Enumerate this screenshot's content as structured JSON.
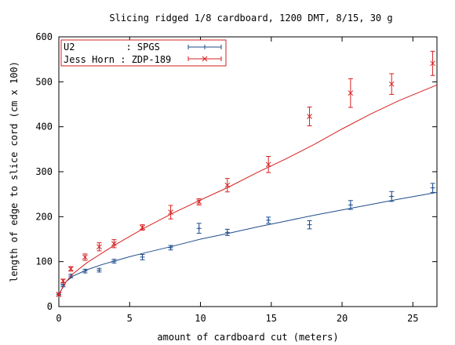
{
  "chart_data": {
    "type": "scatter",
    "title": "Slicing ridged 1/8 cardboard, 1200 DMT, 8/15, 30 g",
    "xlabel": "amount of cardboard cut (meters)",
    "ylabel": "length of edge to slice cord (cm x 100)",
    "xlim": [
      0,
      26.7
    ],
    "ylim": [
      0,
      600
    ],
    "xticks": [
      0,
      5,
      10,
      15,
      20,
      25
    ],
    "yticks": [
      0,
      100,
      200,
      300,
      400,
      500,
      600
    ],
    "grid": false,
    "legend_position": "top-left",
    "series": [
      {
        "name": "U2         : SPGS",
        "color": "#1f4e8c",
        "marker": "plus",
        "points": [
          {
            "x": 0,
            "y": 27,
            "err": 3
          },
          {
            "x": 0.3,
            "y": 47,
            "err": 3
          },
          {
            "x": 0.85,
            "y": 68,
            "err": 4
          },
          {
            "x": 1.85,
            "y": 79,
            "err": 4
          },
          {
            "x": 2.85,
            "y": 81,
            "err": 4
          },
          {
            "x": 3.9,
            "y": 101,
            "err": 4
          },
          {
            "x": 5.9,
            "y": 110,
            "err": 6
          },
          {
            "x": 7.9,
            "y": 131,
            "err": 5
          },
          {
            "x": 9.9,
            "y": 174,
            "err": 11
          },
          {
            "x": 11.9,
            "y": 165,
            "err": 7
          },
          {
            "x": 14.8,
            "y": 192,
            "err": 7
          },
          {
            "x": 17.7,
            "y": 182,
            "err": 9
          },
          {
            "x": 20.6,
            "y": 226,
            "err": 10
          },
          {
            "x": 23.5,
            "y": 245,
            "err": 11
          },
          {
            "x": 26.4,
            "y": 264,
            "err": 10
          }
        ],
        "fit": [
          [
            0,
            27
          ],
          [
            0.5,
            55
          ],
          [
            1,
            68
          ],
          [
            2,
            82
          ],
          [
            3,
            93
          ],
          [
            4,
            102
          ],
          [
            5,
            111
          ],
          [
            6,
            119
          ],
          [
            8,
            134
          ],
          [
            10,
            150
          ],
          [
            12,
            163
          ],
          [
            14,
            177
          ],
          [
            16,
            190
          ],
          [
            18,
            203
          ],
          [
            20,
            215
          ],
          [
            22,
            227
          ],
          [
            24,
            239
          ],
          [
            26.7,
            254
          ]
        ]
      },
      {
        "name": "Jess Horn : ZDP-189",
        "color": "#d62020",
        "marker": "cross",
        "points": [
          {
            "x": 0,
            "y": 27,
            "err": 3
          },
          {
            "x": 0.3,
            "y": 57,
            "err": 4
          },
          {
            "x": 0.85,
            "y": 84,
            "err": 5
          },
          {
            "x": 1.85,
            "y": 110,
            "err": 7
          },
          {
            "x": 2.85,
            "y": 133,
            "err": 9
          },
          {
            "x": 3.9,
            "y": 140,
            "err": 9
          },
          {
            "x": 5.9,
            "y": 176,
            "err": 6
          },
          {
            "x": 7.9,
            "y": 210,
            "err": 15
          },
          {
            "x": 9.9,
            "y": 233,
            "err": 7
          },
          {
            "x": 11.9,
            "y": 270,
            "err": 15
          },
          {
            "x": 14.8,
            "y": 316,
            "err": 18
          },
          {
            "x": 17.7,
            "y": 423,
            "err": 21
          },
          {
            "x": 20.6,
            "y": 475,
            "err": 32
          },
          {
            "x": 23.5,
            "y": 495,
            "err": 23
          },
          {
            "x": 26.4,
            "y": 541,
            "err": 27
          }
        ],
        "fit": [
          [
            0,
            27
          ],
          [
            0.5,
            55
          ],
          [
            1,
            73
          ],
          [
            2,
            98
          ],
          [
            3,
            118
          ],
          [
            4,
            138
          ],
          [
            5,
            156
          ],
          [
            6,
            174
          ],
          [
            8,
            207
          ],
          [
            10,
            237
          ],
          [
            12,
            266
          ],
          [
            14,
            298
          ],
          [
            16,
            328
          ],
          [
            18,
            360
          ],
          [
            20,
            395
          ],
          [
            22,
            428
          ],
          [
            24,
            458
          ],
          [
            26.7,
            493
          ]
        ]
      }
    ]
  }
}
